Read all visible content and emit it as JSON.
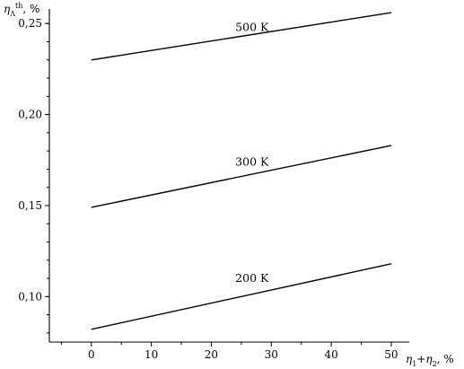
{
  "chart_data": {
    "type": "line",
    "xlabel": {
      "eta": "η",
      "sub1": "1",
      "plus": "+",
      "eta2": "η",
      "sub2": "2",
      "unit": ", %"
    },
    "ylabel": {
      "eta": "η",
      "sub": "Λ",
      "sup": "th",
      "unit": ", %"
    },
    "xlim": [
      -7,
      53
    ],
    "ylim": [
      0.075,
      0.258
    ],
    "xticks": [
      0,
      10,
      20,
      30,
      40,
      50
    ],
    "xtick_labels": [
      "0",
      "10",
      "20",
      "30",
      "40",
      "50"
    ],
    "yticks": [
      0.1,
      0.15,
      0.2,
      0.25
    ],
    "ytick_labels": [
      "0,10",
      "0,15",
      "0,20",
      "0,25"
    ],
    "grid": false,
    "series": [
      {
        "name": "500 K",
        "x": [
          0,
          50
        ],
        "y": [
          0.23,
          0.256
        ],
        "label_at": [
          24,
          0.246
        ]
      },
      {
        "name": "300 K",
        "x": [
          0,
          50
        ],
        "y": [
          0.149,
          0.183
        ],
        "label_at": [
          24,
          0.172
        ]
      },
      {
        "name": "200 K",
        "x": [
          0,
          50
        ],
        "y": [
          0.082,
          0.118
        ],
        "label_at": [
          24,
          0.108
        ]
      }
    ]
  }
}
